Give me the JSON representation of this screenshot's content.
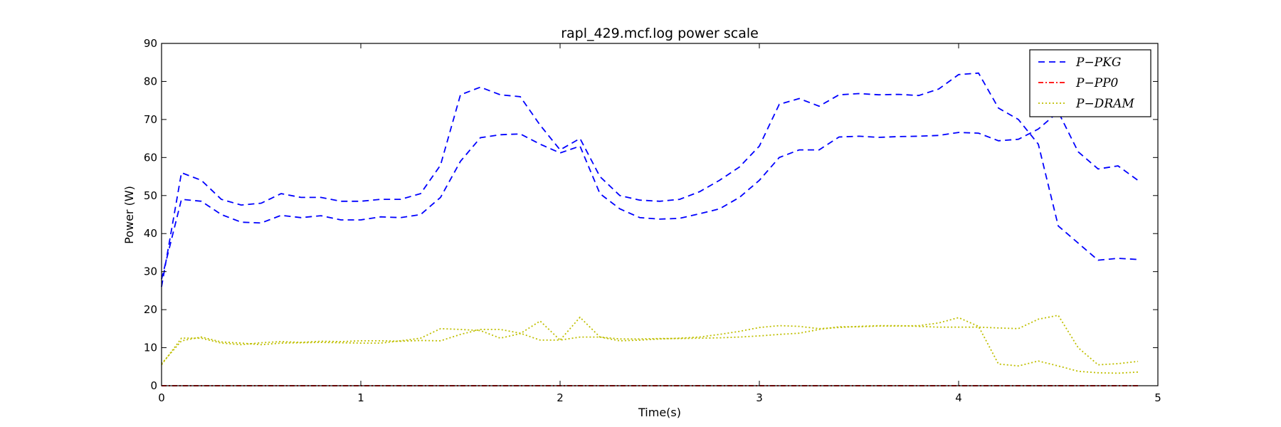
{
  "chart_data": {
    "type": "line",
    "title": "rapl_429.mcf.log power scale",
    "xlabel": "Time(s)",
    "ylabel": "Power (W)",
    "xlim": [
      0,
      5
    ],
    "ylim": [
      0,
      90
    ],
    "xticks": [
      "0",
      "1",
      "2",
      "3",
      "4",
      "5"
    ],
    "yticks": [
      "0",
      "10",
      "20",
      "30",
      "40",
      "50",
      "60",
      "70",
      "80",
      "90"
    ],
    "grid": false,
    "legend_position": "top-right",
    "legend": [
      "P−PKG",
      "P−PP0",
      "P−DRAM"
    ],
    "x": [
      0,
      0.1,
      0.2,
      0.3,
      0.4,
      0.5,
      0.6,
      0.7,
      0.8,
      0.9,
      1.0,
      1.1,
      1.2,
      1.3,
      1.4,
      1.5,
      1.6,
      1.7,
      1.8,
      1.9,
      2.0,
      2.1,
      2.2,
      2.3,
      2.4,
      2.5,
      2.6,
      2.7,
      2.8,
      2.9,
      3.0,
      3.1,
      3.2,
      3.3,
      3.4,
      3.5,
      3.6,
      3.7,
      3.8,
      3.9,
      4.0,
      4.1,
      4.2,
      4.3,
      4.4,
      4.5,
      4.6,
      4.7,
      4.8,
      4.9
    ],
    "series": [
      {
        "name": "P−PKG",
        "color": "#0000ff",
        "style": "dashed",
        "values": [
          26,
          56,
          54,
          49,
          47.5,
          48,
          50.5,
          49.5,
          49.5,
          48.5,
          48.5,
          49,
          49,
          50.5,
          58,
          76.5,
          78.5,
          76.5,
          76,
          68.5,
          62,
          65,
          55,
          50,
          48.8,
          48.5,
          49,
          51,
          54,
          57.5,
          63,
          74,
          75.5,
          73.5,
          76.5,
          76.8,
          76.5,
          76.6,
          76.3,
          78,
          81.8,
          82.2,
          73,
          70,
          63.5,
          42,
          37.5,
          33,
          33.5,
          33.2
        ]
      },
      {
        "name": "P−PKG",
        "color": "#0000ff",
        "style": "dashed",
        "values": [
          28,
          49,
          48.5,
          45,
          43,
          42.8,
          44.8,
          44.2,
          44.7,
          43.6,
          43.6,
          44.4,
          44.2,
          45,
          49.5,
          59,
          65.2,
          66,
          66.2,
          63.5,
          61.2,
          63,
          50.5,
          46.5,
          44.2,
          43.8,
          44,
          45.2,
          46.5,
          49.5,
          54,
          60,
          62,
          62,
          65.4,
          65.6,
          65.3,
          65.5,
          65.6,
          65.8,
          66.6,
          66.4,
          64.4,
          64.8,
          67.5,
          72,
          61.5,
          57,
          57.8,
          54
        ]
      },
      {
        "name": "P−PP0",
        "color": "#ff0000",
        "style": "dashdot",
        "values": [
          0,
          0,
          0,
          0,
          0,
          0,
          0,
          0,
          0,
          0,
          0,
          0,
          0,
          0,
          0,
          0,
          0,
          0,
          0,
          0,
          0,
          0,
          0,
          0,
          0,
          0,
          0,
          0,
          0,
          0,
          0,
          0,
          0,
          0,
          0,
          0,
          0,
          0,
          0,
          0,
          0,
          0,
          0,
          0,
          0,
          0,
          0,
          0,
          0,
          0
        ]
      },
      {
        "name": "P−PP0",
        "color": "#ff0000",
        "style": "dashdot",
        "values": [
          0,
          0,
          0,
          0,
          0,
          0,
          0,
          0,
          0,
          0,
          0,
          0,
          0,
          0,
          0,
          0,
          0,
          0,
          0,
          0,
          0,
          0,
          0,
          0,
          0,
          0,
          0,
          0,
          0,
          0,
          0,
          0,
          0,
          0,
          0,
          0,
          0,
          0,
          0,
          0,
          0,
          0,
          0,
          0,
          0,
          0,
          0,
          0,
          0,
          0
        ]
      },
      {
        "name": "P−DRAM",
        "color": "#bfbf00",
        "style": "dotted",
        "values": [
          5.5,
          12.5,
          12.5,
          11.2,
          10.8,
          11.3,
          11.6,
          11.4,
          11.7,
          11.6,
          11.8,
          11.8,
          11.7,
          11.9,
          11.8,
          13.5,
          14.8,
          14.8,
          13.8,
          12,
          12,
          18,
          12.8,
          12.3,
          12.3,
          12.4,
          12.4,
          12.5,
          12.6,
          12.8,
          13.1,
          13.5,
          13.8,
          14.8,
          15.5,
          15.5,
          15.7,
          15.7,
          15.8,
          16.5,
          17.9,
          15.6,
          5.7,
          5.2,
          6.5,
          5.2,
          3.8,
          3.4,
          3.3,
          3.6
        ]
      },
      {
        "name": "P−DRAM",
        "color": "#bfbf00",
        "style": "dotted",
        "values": [
          5.8,
          11.8,
          12.8,
          11.5,
          11.2,
          10.8,
          11.2,
          11.3,
          11.4,
          11.3,
          11.2,
          11.2,
          11.8,
          12.5,
          15,
          14.8,
          14.5,
          12.5,
          13.7,
          17,
          12,
          12.8,
          12.8,
          11.8,
          12,
          12.3,
          12.5,
          12.8,
          13.5,
          14.3,
          15.3,
          15.8,
          15.6,
          15,
          15.3,
          15.6,
          15.8,
          15.8,
          15.6,
          15.4,
          15.4,
          15.4,
          15.2,
          15,
          17.5,
          18.5,
          10,
          5.5,
          5.8,
          6.4
        ]
      }
    ]
  }
}
